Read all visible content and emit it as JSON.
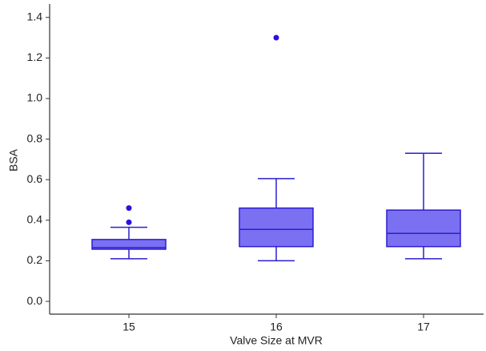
{
  "chart_data": {
    "type": "box",
    "x_label": "Valve Size at MVR",
    "y_label": "BSA",
    "categories": [
      "15",
      "16",
      "17"
    ],
    "boxes": [
      {
        "min": 0.21,
        "q1": 0.257,
        "median": 0.265,
        "q3": 0.305,
        "max": 0.365,
        "outliers": [
          0.39,
          0.46
        ]
      },
      {
        "min": 0.2,
        "q1": 0.27,
        "median": 0.355,
        "q3": 0.46,
        "max": 0.605,
        "outliers": [
          1.3
        ]
      },
      {
        "min": 0.21,
        "q1": 0.27,
        "median": 0.335,
        "q3": 0.45,
        "max": 0.73,
        "outliers": []
      }
    ],
    "color": "#7b70f2",
    "edge_color": "#2a1fcf",
    "outlier_color": "#2a10e0",
    "ylim": [
      -0.063,
      1.466
    ],
    "yticks": [
      {
        "value": 0,
        "label": "0.0"
      },
      0.2,
      0.4,
      0.6,
      0.8,
      {
        "value": 1,
        "label": "1.0"
      },
      1.2,
      1.4
    ]
  }
}
